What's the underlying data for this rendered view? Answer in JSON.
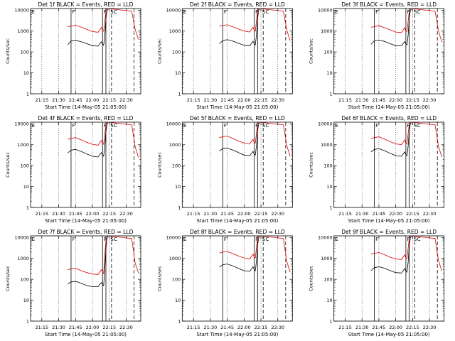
{
  "figure": {
    "ylabel": "Counts/sec",
    "xlabel": "Start Time (14-May-05 21:05:00)",
    "x_tick_labels": [
      "21:15",
      "21:30",
      "21:45",
      "22:00",
      "22:15",
      "22:30"
    ],
    "y_tick_labels": [
      "1",
      "10",
      "100",
      "1000",
      "10000"
    ],
    "annotations": [
      "E",
      "F",
      "F",
      "S",
      "C"
    ],
    "colors": {
      "events": "#000000",
      "lld": "#dd0000",
      "axes": "#000000"
    }
  },
  "chart_data": [
    {
      "type": "line",
      "title": "Det 1f BLACK = Events, RED = LLD",
      "ylog": true,
      "ylim": [
        1,
        12000
      ],
      "xlim": [
        "21:05",
        "22:43"
      ],
      "series": [
        {
          "name": "Events",
          "color": "#000000",
          "x": [
            "21:38",
            "21:41",
            "21:45",
            "21:50",
            "21:55",
            "22:00",
            "22:05",
            "22:08",
            "22:09",
            "22:10",
            "22:11",
            "22:12",
            "22:13",
            "22:14"
          ],
          "y": [
            220,
            330,
            360,
            310,
            250,
            200,
            190,
            310,
            240,
            210,
            600,
            4000,
            10000,
            11000
          ]
        },
        {
          "name": "LLD",
          "color": "#dd0000",
          "x": [
            "21:38",
            "21:41",
            "21:45",
            "21:50",
            "21:55",
            "22:00",
            "22:05",
            "22:08",
            "22:09",
            "22:10",
            "22:11",
            "22:12",
            "22:13",
            "22:14",
            "22:35",
            "22:38",
            "22:41"
          ],
          "y": [
            1600,
            1750,
            1900,
            1550,
            1200,
            950,
            880,
            1500,
            1050,
            980,
            3000,
            9000,
            11500,
            12000,
            9000,
            1200,
            400
          ]
        }
      ]
    },
    {
      "type": "line",
      "title": "Det 2f BLACK = Events, RED = LLD",
      "ylog": true,
      "ylim": [
        1,
        12000
      ],
      "xlim": [
        "21:05",
        "22:43"
      ],
      "series": [
        {
          "name": "Events",
          "color": "#000000",
          "x": [
            "21:38",
            "21:41",
            "21:45",
            "21:50",
            "21:55",
            "22:00",
            "22:05",
            "22:08",
            "22:09",
            "22:10",
            "22:11",
            "22:12",
            "22:13",
            "22:14"
          ],
          "y": [
            250,
            350,
            390,
            330,
            260,
            210,
            200,
            320,
            250,
            220,
            650,
            4200,
            10000,
            11000
          ]
        },
        {
          "name": "LLD",
          "color": "#dd0000",
          "x": [
            "21:38",
            "21:41",
            "21:45",
            "21:50",
            "21:55",
            "22:00",
            "22:05",
            "22:08",
            "22:09",
            "22:10",
            "22:11",
            "22:12",
            "22:13",
            "22:14",
            "22:35",
            "22:38",
            "22:41"
          ],
          "y": [
            1700,
            1850,
            2000,
            1600,
            1250,
            1000,
            900,
            1550,
            1100,
            1000,
            3100,
            9200,
            11500,
            12000,
            9000,
            1100,
            350
          ]
        }
      ]
    },
    {
      "type": "line",
      "title": "Det 3f BLACK = Events, RED = LLD",
      "ylog": true,
      "ylim": [
        1,
        12000
      ],
      "xlim": [
        "21:05",
        "22:43"
      ],
      "series": [
        {
          "name": "Events",
          "color": "#000000",
          "x": [
            "21:38",
            "21:41",
            "21:45",
            "21:50",
            "21:55",
            "22:00",
            "22:05",
            "22:08",
            "22:09",
            "22:10",
            "22:11",
            "22:12",
            "22:13",
            "22:14"
          ],
          "y": [
            230,
            340,
            370,
            320,
            250,
            200,
            195,
            315,
            245,
            215,
            620,
            4100,
            10000,
            11000
          ]
        },
        {
          "name": "LLD",
          "color": "#dd0000",
          "x": [
            "21:38",
            "21:41",
            "21:45",
            "21:50",
            "21:55",
            "22:00",
            "22:05",
            "22:08",
            "22:09",
            "22:10",
            "22:11",
            "22:12",
            "22:13",
            "22:14",
            "22:35",
            "22:38",
            "22:41"
          ],
          "y": [
            1500,
            1650,
            1800,
            1450,
            1150,
            900,
            850,
            1450,
            1000,
            950,
            2900,
            8800,
            11500,
            12000,
            9000,
            1000,
            300
          ]
        }
      ]
    },
    {
      "type": "line",
      "title": "Det 4f BLACK = Events, RED = LLD",
      "ylog": true,
      "ylim": [
        1,
        12000
      ],
      "xlim": [
        "21:05",
        "22:43"
      ],
      "series": [
        {
          "name": "Events",
          "color": "#000000",
          "x": [
            "21:38",
            "21:41",
            "21:45",
            "21:50",
            "21:55",
            "22:00",
            "22:05",
            "22:08",
            "22:09",
            "22:10",
            "22:11",
            "22:12",
            "22:13",
            "22:14"
          ],
          "y": [
            400,
            550,
            600,
            480,
            360,
            280,
            260,
            420,
            320,
            280,
            800,
            4500,
            10000,
            11000
          ]
        },
        {
          "name": "LLD",
          "color": "#dd0000",
          "x": [
            "21:38",
            "21:41",
            "21:45",
            "21:50",
            "21:55",
            "22:00",
            "22:05",
            "22:08",
            "22:09",
            "22:10",
            "22:11",
            "22:12",
            "22:13",
            "22:14",
            "22:35",
            "22:38",
            "22:41"
          ],
          "y": [
            1800,
            2000,
            2200,
            1700,
            1300,
            1050,
            950,
            1600,
            1150,
            1050,
            3200,
            9300,
            11500,
            12000,
            9000,
            800,
            250
          ]
        }
      ]
    },
    {
      "type": "line",
      "title": "Det 5f BLACK = Events, RED = LLD",
      "ylog": true,
      "ylim": [
        1,
        12000
      ],
      "xlim": [
        "21:05",
        "22:43"
      ],
      "series": [
        {
          "name": "Events",
          "color": "#000000",
          "x": [
            "21:38",
            "21:41",
            "21:45",
            "21:50",
            "21:55",
            "22:00",
            "22:05",
            "22:08",
            "22:09",
            "22:10",
            "22:11",
            "22:12",
            "22:13",
            "22:14"
          ],
          "y": [
            500,
            650,
            700,
            560,
            420,
            320,
            300,
            480,
            360,
            320,
            900,
            4800,
            10000,
            11000
          ]
        },
        {
          "name": "LLD",
          "color": "#dd0000",
          "x": [
            "21:38",
            "21:41",
            "21:45",
            "21:50",
            "21:55",
            "22:00",
            "22:05",
            "22:08",
            "22:09",
            "22:10",
            "22:11",
            "22:12",
            "22:13",
            "22:14",
            "22:35",
            "22:38",
            "22:41"
          ],
          "y": [
            2200,
            2400,
            2600,
            2000,
            1500,
            1200,
            1100,
            1800,
            1300,
            1200,
            3500,
            9500,
            11500,
            12000,
            9000,
            900,
            280
          ]
        }
      ]
    },
    {
      "type": "line",
      "title": "Det 6f BLACK = Events, RED = LLD",
      "ylog": true,
      "ylim": [
        1,
        12000
      ],
      "xlim": [
        "21:05",
        "22:43"
      ],
      "series": [
        {
          "name": "Events",
          "color": "#000000",
          "x": [
            "21:38",
            "21:41",
            "21:45",
            "21:50",
            "21:55",
            "22:00",
            "22:05",
            "22:08",
            "22:09",
            "22:10",
            "22:11",
            "22:12",
            "22:13",
            "22:14"
          ],
          "y": [
            450,
            600,
            650,
            520,
            390,
            300,
            280,
            450,
            340,
            300,
            850,
            4600,
            10000,
            11000
          ]
        },
        {
          "name": "LLD",
          "color": "#dd0000",
          "x": [
            "21:38",
            "21:41",
            "21:45",
            "21:50",
            "21:55",
            "22:00",
            "22:05",
            "22:08",
            "22:09",
            "22:10",
            "22:11",
            "22:12",
            "22:13",
            "22:14",
            "22:35",
            "22:38",
            "22:41"
          ],
          "y": [
            2000,
            2200,
            2400,
            1850,
            1400,
            1100,
            1000,
            1700,
            1200,
            1100,
            3300,
            9400,
            11500,
            12000,
            9000,
            850,
            260
          ]
        }
      ]
    },
    {
      "type": "line",
      "title": "Det 7f BLACK = Events, RED = LLD",
      "ylog": true,
      "ylim": [
        1,
        12000
      ],
      "xlim": [
        "21:05",
        "22:43"
      ],
      "series": [
        {
          "name": "Events",
          "color": "#000000",
          "x": [
            "21:38",
            "21:41",
            "21:45",
            "21:50",
            "21:55",
            "22:00",
            "22:05",
            "22:08",
            "22:09",
            "22:10",
            "22:11",
            "22:12",
            "22:13",
            "22:14"
          ],
          "y": [
            60,
            75,
            80,
            65,
            50,
            45,
            45,
            70,
            55,
            50,
            300,
            3000,
            10000,
            11000
          ]
        },
        {
          "name": "LLD",
          "color": "#dd0000",
          "x": [
            "21:38",
            "21:41",
            "21:45",
            "21:50",
            "21:55",
            "22:00",
            "22:05",
            "22:08",
            "22:09",
            "22:10",
            "22:11",
            "22:12",
            "22:13",
            "22:14",
            "22:35",
            "22:38",
            "22:41"
          ],
          "y": [
            280,
            320,
            340,
            260,
            210,
            180,
            170,
            290,
            220,
            190,
            1500,
            7000,
            11000,
            12000,
            9000,
            600,
            200
          ]
        }
      ]
    },
    {
      "type": "line",
      "title": "Det 8f BLACK = Events, RED = LLD",
      "ylog": true,
      "ylim": [
        1,
        12000
      ],
      "xlim": [
        "21:05",
        "22:43"
      ],
      "series": [
        {
          "name": "Events",
          "color": "#000000",
          "x": [
            "21:38",
            "21:41",
            "21:45",
            "21:50",
            "21:55",
            "22:00",
            "22:05",
            "22:08",
            "22:09",
            "22:10",
            "22:11",
            "22:12",
            "22:13",
            "22:14"
          ],
          "y": [
            380,
            500,
            540,
            440,
            330,
            260,
            240,
            400,
            300,
            260,
            750,
            4400,
            10000,
            11000
          ]
        },
        {
          "name": "LLD",
          "color": "#dd0000",
          "x": [
            "21:38",
            "21:41",
            "21:45",
            "21:50",
            "21:55",
            "22:00",
            "22:05",
            "22:08",
            "22:09",
            "22:10",
            "22:11",
            "22:12",
            "22:13",
            "22:14",
            "22:35",
            "22:38",
            "22:41"
          ],
          "y": [
            1800,
            2000,
            2150,
            1700,
            1300,
            1050,
            950,
            1600,
            1150,
            1050,
            3200,
            9300,
            11500,
            12000,
            9000,
            700,
            220
          ]
        }
      ]
    },
    {
      "type": "line",
      "title": "Det 9f BLACK = Events, RED = LLD",
      "ylog": true,
      "ylim": [
        1,
        12000
      ],
      "xlim": [
        "21:05",
        "22:43"
      ],
      "series": [
        {
          "name": "Events",
          "color": "#000000",
          "x": [
            "21:38",
            "21:41",
            "21:45",
            "21:50",
            "21:55",
            "22:00",
            "22:05",
            "22:08",
            "22:09",
            "22:10",
            "22:11",
            "22:12",
            "22:13",
            "22:14"
          ],
          "y": [
            260,
            360,
            400,
            340,
            260,
            210,
            200,
            330,
            250,
            220,
            650,
            4200,
            10000,
            11000
          ]
        },
        {
          "name": "LLD",
          "color": "#dd0000",
          "x": [
            "21:38",
            "21:41",
            "21:45",
            "21:50",
            "21:55",
            "22:00",
            "22:05",
            "22:08",
            "22:09",
            "22:10",
            "22:11",
            "22:12",
            "22:13",
            "22:14",
            "22:35",
            "22:38",
            "22:41"
          ],
          "y": [
            1600,
            1750,
            1900,
            1500,
            1150,
            950,
            880,
            1500,
            1050,
            980,
            3000,
            9000,
            11500,
            12000,
            9000,
            800,
            250
          ]
        }
      ]
    }
  ]
}
